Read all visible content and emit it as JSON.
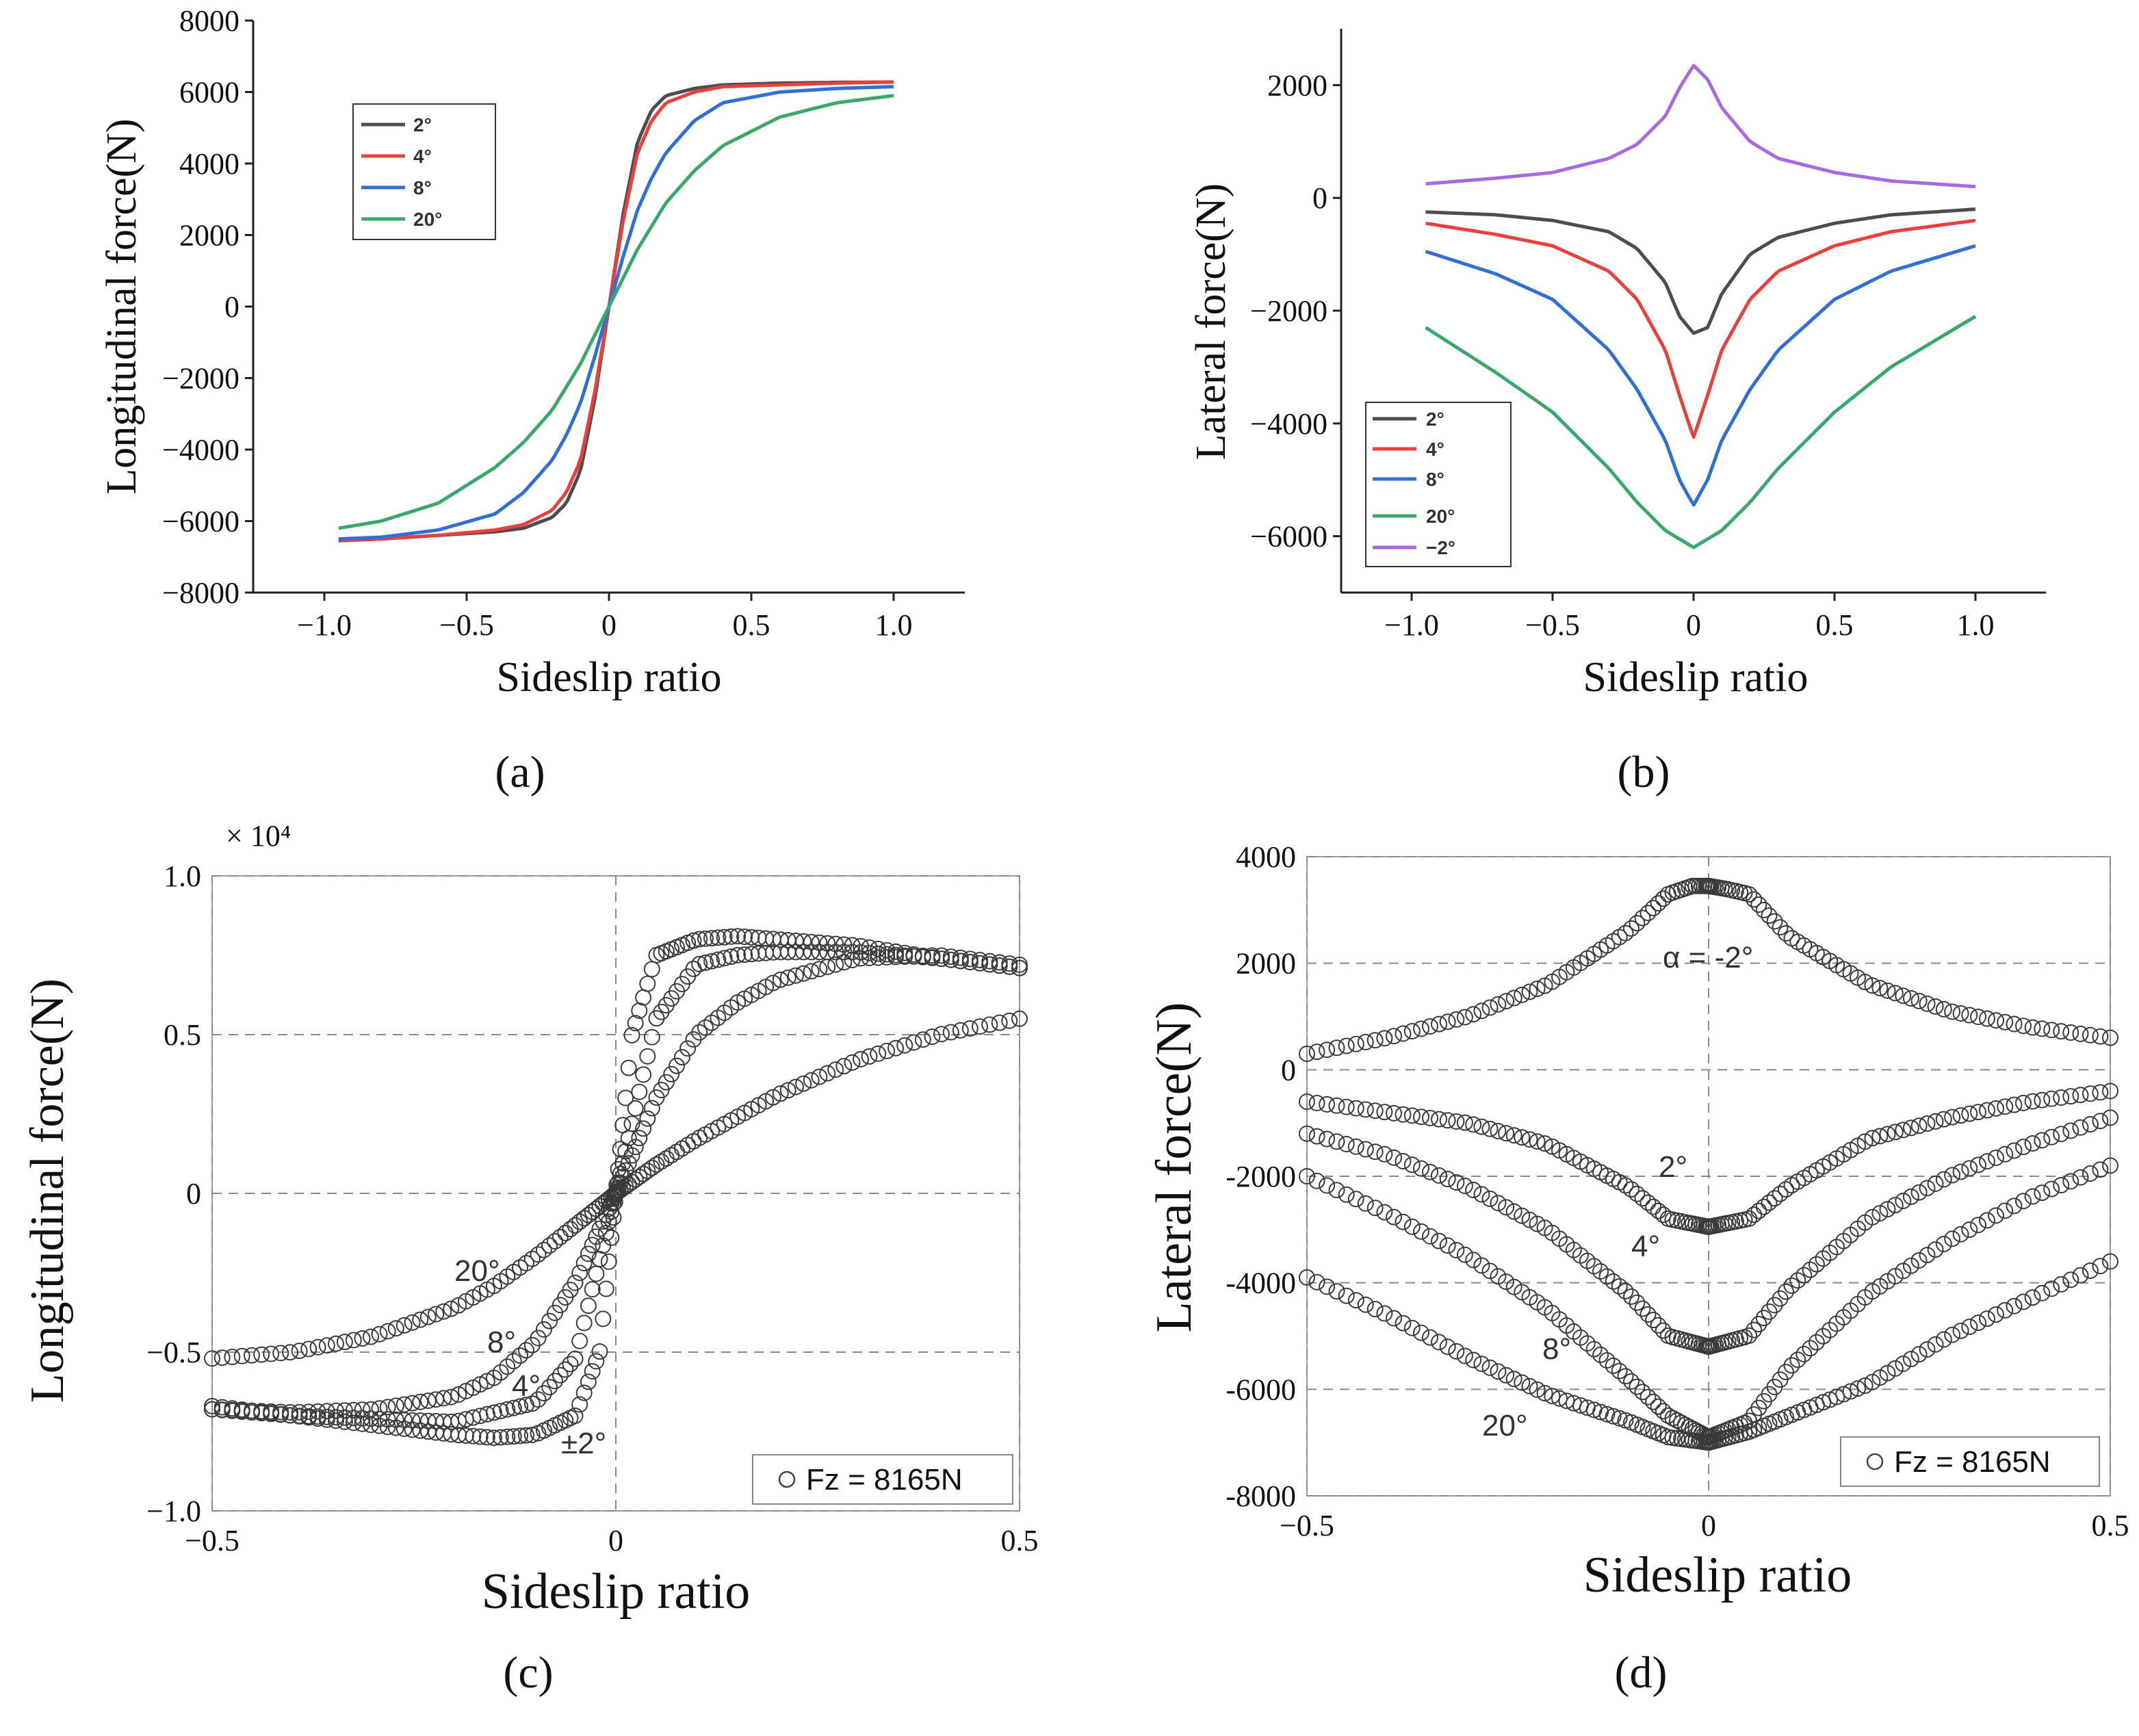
{
  "chart_data": [
    {
      "panel": "a",
      "type": "line",
      "caption": "(a)",
      "xlabel": "Sideslip ratio",
      "ylabel": "Longitudinal force(N)",
      "xlim": [
        -1.25,
        1.25
      ],
      "ylim": [
        -8000,
        8000
      ],
      "xticks": [
        -1.0,
        -0.5,
        0,
        0.5,
        1.0
      ],
      "xtick_labels": [
        "−1.0",
        "−0.5",
        "0",
        "0.5",
        "1.0"
      ],
      "yticks": [
        8000,
        6000,
        4000,
        2000,
        0,
        -2000,
        -4000,
        -6000,
        -8000
      ],
      "ytick_labels": [
        "8000",
        "6000",
        "4000",
        "2000",
        "0",
        "−2000",
        "−4000",
        "−6000",
        "−8000"
      ],
      "legend_position": "upper-left",
      "series": [
        {
          "name": "2°",
          "color": "#4d4d4d",
          "x": [
            -0.95,
            -0.8,
            -0.6,
            -0.4,
            -0.3,
            -0.2,
            -0.15,
            -0.1,
            -0.05,
            0,
            0.05,
            0.1,
            0.15,
            0.2,
            0.3,
            0.4,
            0.6,
            0.8,
            1.0
          ],
          "y": [
            -6550,
            -6500,
            -6400,
            -6300,
            -6200,
            -5900,
            -5500,
            -4600,
            -2600,
            0,
            2600,
            4600,
            5500,
            5900,
            6100,
            6200,
            6250,
            6270,
            6280
          ]
        },
        {
          "name": "4°",
          "color": "#e8403c",
          "x": [
            -0.95,
            -0.8,
            -0.6,
            -0.4,
            -0.3,
            -0.2,
            -0.15,
            -0.1,
            -0.05,
            0,
            0.05,
            0.1,
            0.15,
            0.2,
            0.3,
            0.4,
            0.6,
            0.8,
            1.0
          ],
          "y": [
            -6550,
            -6500,
            -6400,
            -6250,
            -6100,
            -5700,
            -5200,
            -4300,
            -2400,
            0,
            2400,
            4300,
            5200,
            5700,
            6000,
            6150,
            6200,
            6250,
            6280
          ]
        },
        {
          "name": "8°",
          "color": "#2f6fd6",
          "x": [
            -0.95,
            -0.8,
            -0.6,
            -0.4,
            -0.3,
            -0.2,
            -0.15,
            -0.1,
            -0.05,
            0,
            0.05,
            0.1,
            0.15,
            0.2,
            0.3,
            0.4,
            0.6,
            0.8,
            1.0
          ],
          "y": [
            -6500,
            -6450,
            -6250,
            -5800,
            -5200,
            -4300,
            -3600,
            -2700,
            -1400,
            0,
            1400,
            2700,
            3600,
            4300,
            5200,
            5700,
            6000,
            6100,
            6150
          ]
        },
        {
          "name": "20°",
          "color": "#3aa86a",
          "x": [
            -0.95,
            -0.8,
            -0.6,
            -0.4,
            -0.3,
            -0.2,
            -0.1,
            -0.05,
            0,
            0.05,
            0.1,
            0.2,
            0.3,
            0.4,
            0.6,
            0.8,
            1.0
          ],
          "y": [
            -6200,
            -6000,
            -5500,
            -4500,
            -3800,
            -2900,
            -1600,
            -800,
            0,
            800,
            1600,
            2900,
            3800,
            4500,
            5300,
            5700,
            5900
          ]
        }
      ]
    },
    {
      "panel": "b",
      "type": "line",
      "caption": "(b)",
      "xlabel": "Sideslip ratio",
      "ylabel": "Lateral force(N)",
      "xlim": [
        -1.25,
        1.25
      ],
      "ylim": [
        -7000,
        3000
      ],
      "xticks": [
        -1.0,
        -0.5,
        0,
        0.5,
        1.0
      ],
      "xtick_labels": [
        "−1.0",
        "−0.5",
        "0",
        "0.5",
        "1.0"
      ],
      "yticks": [
        2000,
        0,
        -2000,
        -4000,
        -6000
      ],
      "ytick_labels": [
        "2000",
        "0",
        "−2000",
        "−4000",
        "−6000"
      ],
      "legend_position": "lower-left",
      "series": [
        {
          "name": "2°",
          "color": "#4d4d4d",
          "x": [
            -0.95,
            -0.7,
            -0.5,
            -0.3,
            -0.2,
            -0.1,
            -0.05,
            0,
            0.05,
            0.1,
            0.2,
            0.3,
            0.5,
            0.7,
            1.0
          ],
          "y": [
            -250,
            -300,
            -400,
            -600,
            -900,
            -1500,
            -2100,
            -2400,
            -2300,
            -1700,
            -1000,
            -700,
            -450,
            -300,
            -200
          ]
        },
        {
          "name": "4°",
          "color": "#e8403c",
          "x": [
            -0.95,
            -0.7,
            -0.5,
            -0.3,
            -0.2,
            -0.1,
            -0.05,
            0,
            0.05,
            0.1,
            0.2,
            0.3,
            0.5,
            0.7,
            1.0
          ],
          "y": [
            -450,
            -650,
            -850,
            -1300,
            -1800,
            -2700,
            -3500,
            -4250,
            -3500,
            -2700,
            -1800,
            -1300,
            -850,
            -600,
            -400
          ]
        },
        {
          "name": "8°",
          "color": "#2f6fd6",
          "x": [
            -0.95,
            -0.7,
            -0.5,
            -0.3,
            -0.2,
            -0.1,
            -0.05,
            0,
            0.05,
            0.1,
            0.2,
            0.3,
            0.5,
            0.7,
            1.0
          ],
          "y": [
            -950,
            -1350,
            -1800,
            -2700,
            -3400,
            -4300,
            -5000,
            -5450,
            -5000,
            -4300,
            -3400,
            -2700,
            -1800,
            -1300,
            -850
          ]
        },
        {
          "name": "20°",
          "color": "#3aa86a",
          "x": [
            -0.95,
            -0.7,
            -0.5,
            -0.3,
            -0.2,
            -0.1,
            0,
            0.1,
            0.2,
            0.3,
            0.5,
            0.7,
            1.0
          ],
          "y": [
            -2300,
            -3100,
            -3800,
            -4800,
            -5400,
            -5900,
            -6200,
            -5900,
            -5400,
            -4800,
            -3800,
            -3000,
            -2100
          ]
        },
        {
          "name": "−2°",
          "color": "#a66be0",
          "x": [
            -0.95,
            -0.7,
            -0.5,
            -0.3,
            -0.2,
            -0.1,
            -0.05,
            0,
            0.05,
            0.1,
            0.2,
            0.3,
            0.5,
            0.7,
            1.0
          ],
          "y": [
            250,
            350,
            450,
            700,
            950,
            1450,
            1950,
            2350,
            2100,
            1600,
            1000,
            700,
            450,
            300,
            200
          ]
        }
      ]
    },
    {
      "panel": "c",
      "type": "scatter",
      "caption": "(c)",
      "xlabel": "Sideslip ratio",
      "ylabel": "Longitudinal force(N)",
      "multiplier_label": "× 10⁴",
      "xlim": [
        -0.5,
        0.5
      ],
      "ylim": [
        -1.0,
        1.0
      ],
      "xticks": [
        -0.5,
        0,
        0.5
      ],
      "xtick_labels": [
        "−0.5",
        "0",
        "0.5"
      ],
      "yticks": [
        1.0,
        0.5,
        0,
        -0.5,
        -1.0
      ],
      "ytick_labels": [
        "1.0",
        "0.5",
        "0",
        "−0.5",
        "−1.0"
      ],
      "grid": true,
      "legend": "Fz = 8165N",
      "legend_position": "lower-right",
      "annotations": [
        "20°",
        "8°",
        "4°",
        "±2°"
      ],
      "series": [
        {
          "name": "±2°",
          "x": [
            -0.5,
            -0.4,
            -0.3,
            -0.2,
            -0.15,
            -0.1,
            -0.05,
            -0.02,
            0,
            0.02,
            0.05,
            0.1,
            0.15,
            0.2,
            0.3,
            0.4,
            0.5
          ],
          "y": [
            -0.67,
            -0.7,
            -0.73,
            -0.76,
            -0.77,
            -0.76,
            -0.7,
            -0.5,
            0,
            0.5,
            0.75,
            0.8,
            0.81,
            0.8,
            0.78,
            0.74,
            0.71
          ]
        },
        {
          "name": "4°",
          "x": [
            -0.5,
            -0.4,
            -0.3,
            -0.2,
            -0.1,
            -0.05,
            0,
            0.05,
            0.1,
            0.15,
            0.2,
            0.3,
            0.4,
            0.5
          ],
          "y": [
            -0.68,
            -0.7,
            -0.71,
            -0.72,
            -0.66,
            -0.52,
            0,
            0.55,
            0.72,
            0.75,
            0.76,
            0.76,
            0.74,
            0.71
          ]
        },
        {
          "name": "8°",
          "x": [
            -0.5,
            -0.4,
            -0.3,
            -0.2,
            -0.15,
            -0.1,
            -0.05,
            0,
            0.05,
            0.1,
            0.15,
            0.2,
            0.3,
            0.4,
            0.5
          ],
          "y": [
            -0.68,
            -0.69,
            -0.68,
            -0.64,
            -0.58,
            -0.47,
            -0.28,
            0,
            0.3,
            0.5,
            0.6,
            0.67,
            0.74,
            0.75,
            0.72
          ]
        },
        {
          "name": "20°",
          "x": [
            -0.5,
            -0.4,
            -0.3,
            -0.2,
            -0.15,
            -0.1,
            -0.05,
            0,
            0.05,
            0.1,
            0.15,
            0.2,
            0.3,
            0.4,
            0.5
          ],
          "y": [
            -0.52,
            -0.5,
            -0.45,
            -0.36,
            -0.29,
            -0.2,
            -0.1,
            0,
            0.09,
            0.17,
            0.24,
            0.31,
            0.42,
            0.5,
            0.55
          ]
        }
      ]
    },
    {
      "panel": "d",
      "type": "scatter",
      "caption": "(d)",
      "xlabel": "Sideslip ratio",
      "ylabel": "Lateral force(N)",
      "xlim": [
        -0.5,
        0.5
      ],
      "ylim": [
        -8000,
        4000
      ],
      "xticks": [
        -0.5,
        0,
        0.5
      ],
      "xtick_labels": [
        "−0.5",
        "0",
        "0.5"
      ],
      "yticks": [
        4000,
        2000,
        0,
        -2000,
        -4000,
        -6000,
        -8000
      ],
      "ytick_labels": [
        "4000",
        "2000",
        "0",
        "-2000",
        "-4000",
        "-6000",
        "-8000"
      ],
      "grid": true,
      "legend": "Fz = 8165N",
      "legend_position": "lower-right",
      "annotations": [
        "α = -2°",
        "2°",
        "4°",
        "8°",
        "20°"
      ],
      "series": [
        {
          "name": "-2°",
          "x": [
            -0.5,
            -0.4,
            -0.3,
            -0.2,
            -0.1,
            -0.05,
            -0.02,
            0,
            0.02,
            0.05,
            0.1,
            0.2,
            0.3,
            0.4,
            0.5
          ],
          "y": [
            300,
            600,
            1000,
            1600,
            2600,
            3300,
            3450,
            3450,
            3400,
            3300,
            2500,
            1600,
            1100,
            800,
            600
          ]
        },
        {
          "name": "2°",
          "x": [
            -0.5,
            -0.4,
            -0.3,
            -0.2,
            -0.1,
            -0.05,
            0,
            0.05,
            0.1,
            0.2,
            0.3,
            0.4,
            0.5
          ],
          "y": [
            -600,
            -800,
            -1000,
            -1400,
            -2200,
            -2800,
            -2950,
            -2800,
            -2200,
            -1300,
            -900,
            -600,
            -400
          ]
        },
        {
          "name": "4°",
          "x": [
            -0.5,
            -0.4,
            -0.3,
            -0.2,
            -0.1,
            -0.05,
            0,
            0.05,
            0.1,
            0.2,
            0.3,
            0.4,
            0.5
          ],
          "y": [
            -1200,
            -1600,
            -2200,
            -3000,
            -4200,
            -5000,
            -5200,
            -5000,
            -4100,
            -2800,
            -2000,
            -1400,
            -900
          ]
        },
        {
          "name": "8°",
          "x": [
            -0.5,
            -0.4,
            -0.3,
            -0.2,
            -0.1,
            -0.05,
            0,
            0.05,
            0.1,
            0.2,
            0.3,
            0.4,
            0.5
          ],
          "y": [
            -2000,
            -2700,
            -3500,
            -4500,
            -5800,
            -6500,
            -6900,
            -6600,
            -5600,
            -4200,
            -3200,
            -2400,
            -1800
          ]
        },
        {
          "name": "20°",
          "x": [
            -0.5,
            -0.4,
            -0.3,
            -0.2,
            -0.1,
            -0.05,
            0,
            0.05,
            0.1,
            0.2,
            0.3,
            0.4,
            0.5
          ],
          "y": [
            -3900,
            -4600,
            -5400,
            -6100,
            -6600,
            -6900,
            -7000,
            -6800,
            -6500,
            -5900,
            -5000,
            -4300,
            -3600
          ]
        }
      ]
    }
  ]
}
